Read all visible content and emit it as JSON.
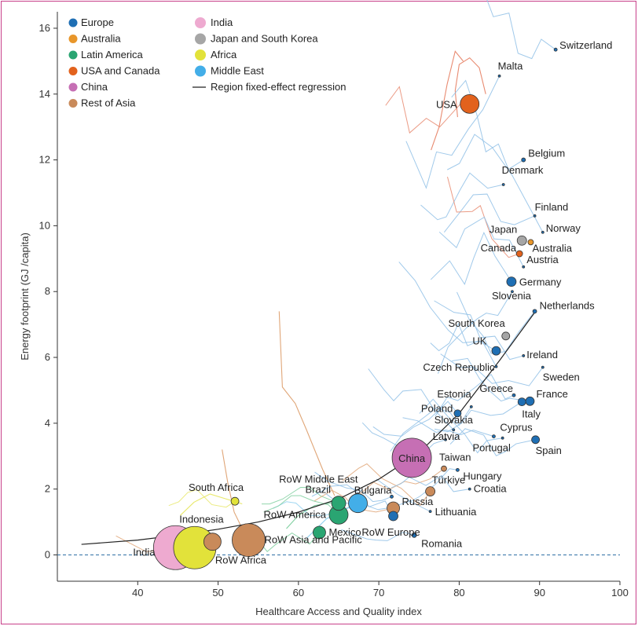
{
  "chart_data": {
    "type": "scatter",
    "xlabel": "Healthcare Access and Quality index",
    "ylabel": "Energy footprint (GJ /capita)",
    "xlim": [
      30,
      100
    ],
    "ylim": [
      -0.8,
      16.5
    ],
    "xticks": [
      40,
      50,
      60,
      70,
      80,
      90,
      100
    ],
    "yticks": [
      0,
      2,
      4,
      6,
      8,
      10,
      12,
      14,
      16
    ],
    "grid": false,
    "legend_position": "top-left",
    "regions": [
      {
        "key": "europe",
        "name": "Europe",
        "color": "#1f6fb4"
      },
      {
        "key": "australia",
        "name": "Australia",
        "color": "#e8962a"
      },
      {
        "key": "latam",
        "name": "Latin America",
        "color": "#2aa572"
      },
      {
        "key": "usa",
        "name": "USA and Canada",
        "color": "#e2621d"
      },
      {
        "key": "china",
        "name": "China",
        "color": "#c66fb4"
      },
      {
        "key": "rasia",
        "name": "Rest of Asia",
        "color": "#c98a5a"
      },
      {
        "key": "india",
        "name": "India",
        "color": "#eeaad0"
      },
      {
        "key": "jpkr",
        "name": "Japan and South Korea",
        "color": "#a6a6a6"
      },
      {
        "key": "africa",
        "name": "Africa",
        "color": "#e2e23a"
      },
      {
        "key": "me",
        "name": "Middle East",
        "color": "#43aee8"
      }
    ],
    "regression_label": "Region fixed-effect regression",
    "regression_curve": [
      [
        33,
        0.32
      ],
      [
        40,
        0.45
      ],
      [
        45,
        0.6
      ],
      [
        50,
        0.78
      ],
      [
        55,
        1.0
      ],
      [
        60,
        1.3
      ],
      [
        65,
        1.7
      ],
      [
        70,
        2.3
      ],
      [
        75,
        3.1
      ],
      [
        80,
        4.3
      ],
      [
        85,
        5.9
      ],
      [
        89.5,
        7.4
      ]
    ],
    "points": [
      {
        "label": "Switzerland",
        "x": 92,
        "y": 15.35,
        "r": 2,
        "region": "europe"
      },
      {
        "label": "Malta",
        "x": 85,
        "y": 14.55,
        "r": 1,
        "region": "europe"
      },
      {
        "label": "USA",
        "x": 81.3,
        "y": 13.7,
        "r": 12,
        "region": "usa"
      },
      {
        "label": "Belgium",
        "x": 88,
        "y": 12.0,
        "r": 2.5,
        "region": "europe"
      },
      {
        "label": "Denmark",
        "x": 85.5,
        "y": 11.25,
        "r": 1.5,
        "region": "europe"
      },
      {
        "label": "Finland",
        "x": 89.4,
        "y": 10.3,
        "r": 1.5,
        "region": "europe"
      },
      {
        "label": "Norway",
        "x": 90.4,
        "y": 9.8,
        "r": 1.5,
        "region": "europe"
      },
      {
        "label": "Japan",
        "x": 87.8,
        "y": 9.55,
        "r": 6,
        "region": "jpkr"
      },
      {
        "label": "Australia",
        "x": 88.9,
        "y": 9.5,
        "r": 3.5,
        "region": "australia"
      },
      {
        "label": "Canada",
        "x": 87.5,
        "y": 9.15,
        "r": 4,
        "region": "usa"
      },
      {
        "label": "Austria",
        "x": 88,
        "y": 8.75,
        "r": 1.5,
        "region": "europe"
      },
      {
        "label": "Germany",
        "x": 86.5,
        "y": 8.3,
        "r": 6,
        "region": "europe"
      },
      {
        "label": "Slovenia",
        "x": 86.6,
        "y": 8.0,
        "r": 1,
        "region": "europe"
      },
      {
        "label": "Netherlands",
        "x": 89.4,
        "y": 7.4,
        "r": 2.5,
        "region": "europe"
      },
      {
        "label": "South Korea",
        "x": 85.8,
        "y": 6.65,
        "r": 5,
        "region": "jpkr"
      },
      {
        "label": "UK",
        "x": 84.6,
        "y": 6.2,
        "r": 5.5,
        "region": "europe"
      },
      {
        "label": "Ireland",
        "x": 88,
        "y": 6.05,
        "r": 1,
        "region": "europe"
      },
      {
        "label": "Czech Republic",
        "x": 84.6,
        "y": 5.72,
        "r": 1.5,
        "region": "europe"
      },
      {
        "label": "Sweden",
        "x": 90.4,
        "y": 5.7,
        "r": 1.5,
        "region": "europe"
      },
      {
        "label": "Greece",
        "x": 86.8,
        "y": 4.85,
        "r": 2,
        "region": "europe"
      },
      {
        "label": "France",
        "x": 88.8,
        "y": 4.67,
        "r": 5.5,
        "region": "europe"
      },
      {
        "label": "Italy",
        "x": 87.8,
        "y": 4.65,
        "r": 5,
        "region": "europe"
      },
      {
        "label": "Estonia",
        "x": 81.5,
        "y": 4.5,
        "r": 1,
        "region": "europe"
      },
      {
        "label": "Poland",
        "x": 79.8,
        "y": 4.3,
        "r": 4.5,
        "region": "europe"
      },
      {
        "label": "Slovakia",
        "x": 79.3,
        "y": 3.8,
        "r": 1,
        "region": "europe"
      },
      {
        "label": "Latvia",
        "x": 78.3,
        "y": 3.5,
        "r": 1,
        "region": "europe"
      },
      {
        "label": "Cyprus",
        "x": 84.3,
        "y": 3.6,
        "r": 2,
        "region": "europe"
      },
      {
        "label": "Portugal",
        "x": 85.4,
        "y": 3.55,
        "r": 1,
        "region": "europe"
      },
      {
        "label": "Spain",
        "x": 89.5,
        "y": 3.5,
        "r": 5,
        "region": "europe"
      },
      {
        "label": "China",
        "x": 74.1,
        "y": 2.95,
        "r": 25,
        "region": "china"
      },
      {
        "label": "Taiwan",
        "x": 78.1,
        "y": 2.62,
        "r": 3.5,
        "region": "rasia"
      },
      {
        "label": "Hungary",
        "x": 79.8,
        "y": 2.58,
        "r": 2,
        "region": "europe"
      },
      {
        "label": "Türkiye",
        "x": 76.4,
        "y": 1.93,
        "r": 6,
        "region": "rasia"
      },
      {
        "label": "Croatia",
        "x": 81.3,
        "y": 2.0,
        "r": 1.5,
        "region": "europe"
      },
      {
        "label": "South Africa",
        "x": 52.1,
        "y": 1.63,
        "r": 5,
        "region": "africa"
      },
      {
        "label": "Bulgaria",
        "x": 71.6,
        "y": 1.77,
        "r": 2,
        "region": "europe"
      },
      {
        "label": "RoW Middle East",
        "x": 67.4,
        "y": 1.57,
        "r": 12,
        "region": "me"
      },
      {
        "label": "Brazil",
        "x": 65,
        "y": 1.57,
        "r": 9,
        "region": "latam"
      },
      {
        "label": "Russia",
        "x": 71.8,
        "y": 1.42,
        "r": 8,
        "region": "rasia"
      },
      {
        "label": "Lithuania",
        "x": 76.4,
        "y": 1.32,
        "r": 1,
        "region": "europe"
      },
      {
        "label": "RoW America",
        "x": 65,
        "y": 1.22,
        "r": 12,
        "region": "latam"
      },
      {
        "label": "RoW Europe",
        "x": 71.8,
        "y": 1.18,
        "r": 6,
        "region": "europe"
      },
      {
        "label": "Mexico",
        "x": 62.6,
        "y": 0.68,
        "r": 8,
        "region": "latam"
      },
      {
        "label": "Romania",
        "x": 74.4,
        "y": 0.6,
        "r": 3,
        "region": "europe"
      },
      {
        "label": "RoW Asia and Pacific",
        "x": 53.8,
        "y": 0.45,
        "r": 21,
        "region": "rasia"
      },
      {
        "label": "Indonesia",
        "x": 49.3,
        "y": 0.4,
        "r": 11,
        "region": "rasia"
      },
      {
        "label": "India",
        "x": 44.7,
        "y": 0.22,
        "r": 28,
        "region": "india"
      },
      {
        "label": "RoW Africa",
        "x": 47.1,
        "y": 0.22,
        "r": 27,
        "region": "africa"
      }
    ]
  }
}
